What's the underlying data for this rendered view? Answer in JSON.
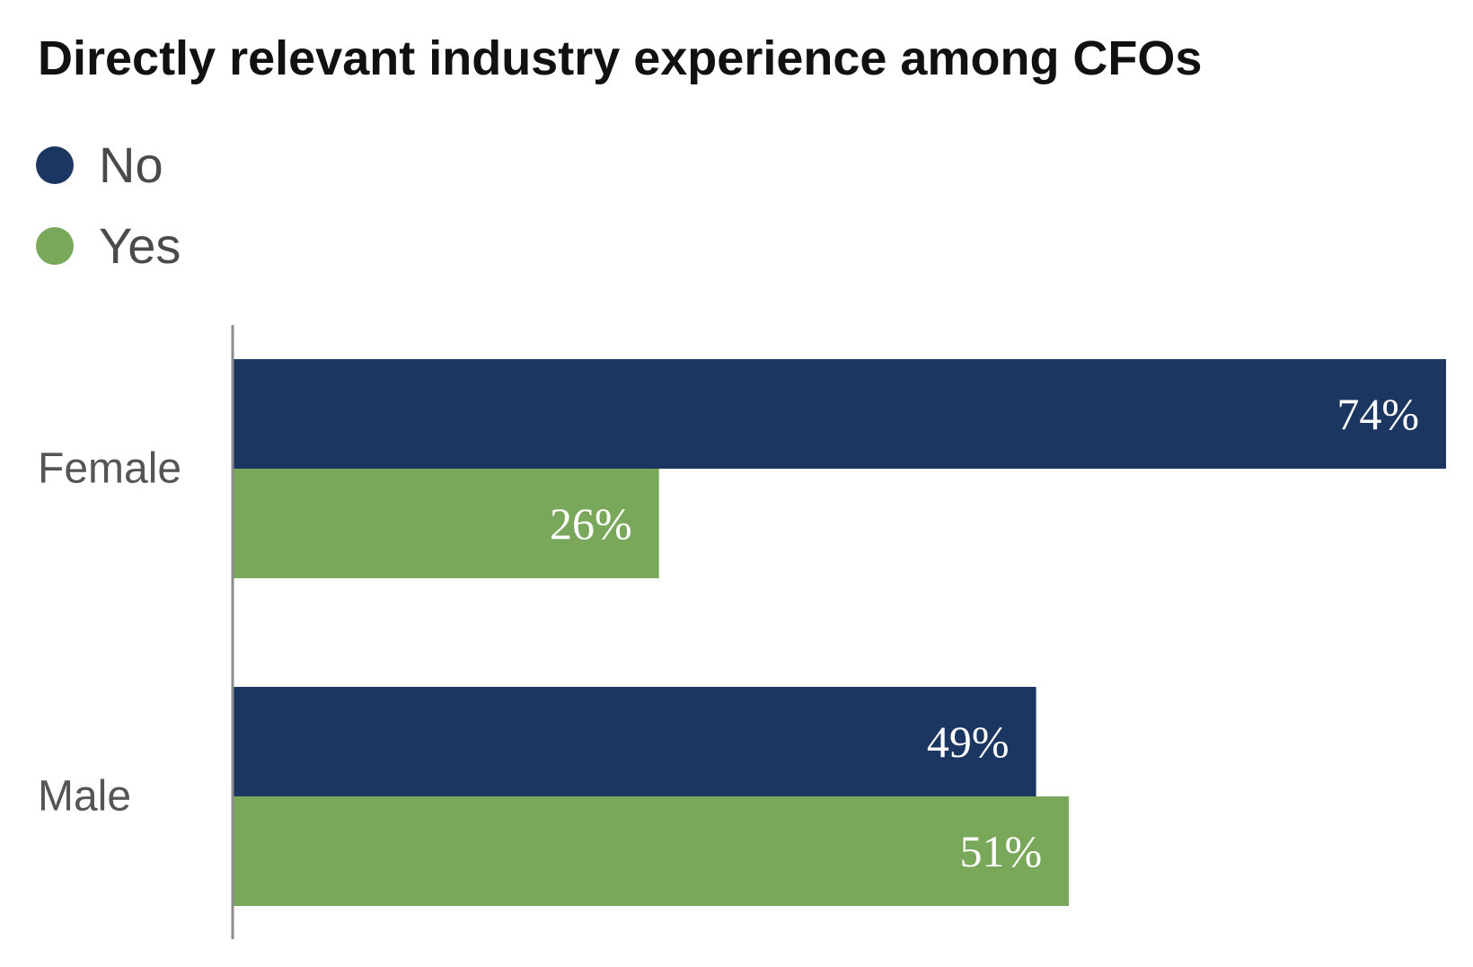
{
  "chart_data": {
    "type": "bar",
    "orientation": "horizontal",
    "title": "Directly relevant industry experience among CFOs",
    "categories": [
      "Female",
      "Male"
    ],
    "series": [
      {
        "name": "No",
        "color": "#1a3661",
        "values": [
          74,
          49
        ]
      },
      {
        "name": "Yes",
        "color": "#79a85a",
        "values": [
          26,
          51
        ]
      }
    ],
    "value_suffix": "%",
    "xlim": [
      0,
      74
    ],
    "grid": false,
    "legend": "top-left"
  }
}
